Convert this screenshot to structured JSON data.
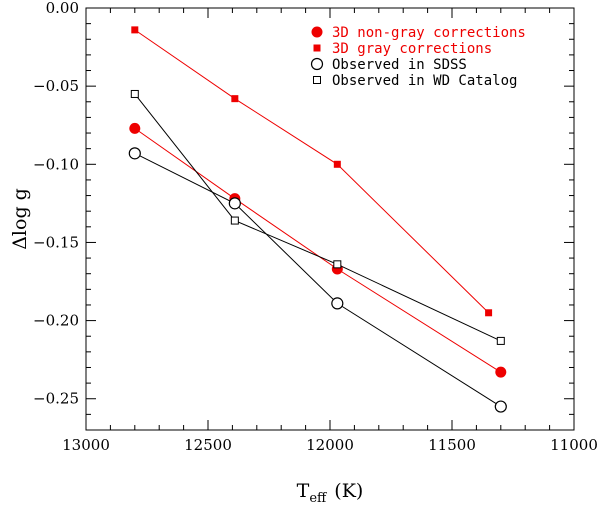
{
  "chart_data": {
    "type": "scatter",
    "title": "",
    "xlabel": "T",
    "xlabel_sub": "eff",
    "xlabel_unit": "(K)",
    "ylabel": "Δlog g",
    "xlim": [
      13000,
      11000
    ],
    "ylim": [
      -0.27,
      0.0
    ],
    "x_reversed": true,
    "grid": false,
    "legend_position": "top-right",
    "x_ticks": [
      13000,
      12500,
      12000,
      11500,
      11000
    ],
    "x_tick_labels": [
      "13000",
      "12500",
      "12000",
      "11500",
      "11000"
    ],
    "y_ticks": [
      0.0,
      -0.05,
      -0.1,
      -0.15,
      -0.2,
      -0.25
    ],
    "y_tick_labels": [
      "0.00",
      "−0.05",
      "−0.10",
      "−0.15",
      "−0.20",
      "−0.25"
    ],
    "series": [
      {
        "name": "3D non-gray corrections",
        "color": "#ee0000",
        "marker": "filled-circle",
        "x": [
          12800,
          12390,
          11970,
          11300
        ],
        "y": [
          -0.077,
          -0.122,
          -0.167,
          -0.233
        ]
      },
      {
        "name": "3D gray corrections",
        "color": "#ee0000",
        "marker": "filled-square",
        "x": [
          12800,
          12390,
          11970,
          11350
        ],
        "y": [
          -0.014,
          -0.058,
          -0.1,
          -0.195
        ]
      },
      {
        "name": "Observed in SDSS",
        "color": "#000000",
        "marker": "open-circle",
        "x": [
          12800,
          12390,
          11970,
          11300
        ],
        "y": [
          -0.093,
          -0.125,
          -0.189,
          -0.255
        ]
      },
      {
        "name": "Observed in WD Catalog",
        "color": "#000000",
        "marker": "open-square",
        "x": [
          12800,
          12390,
          11970,
          11300
        ],
        "y": [
          -0.055,
          -0.136,
          -0.164,
          -0.213
        ]
      }
    ]
  }
}
